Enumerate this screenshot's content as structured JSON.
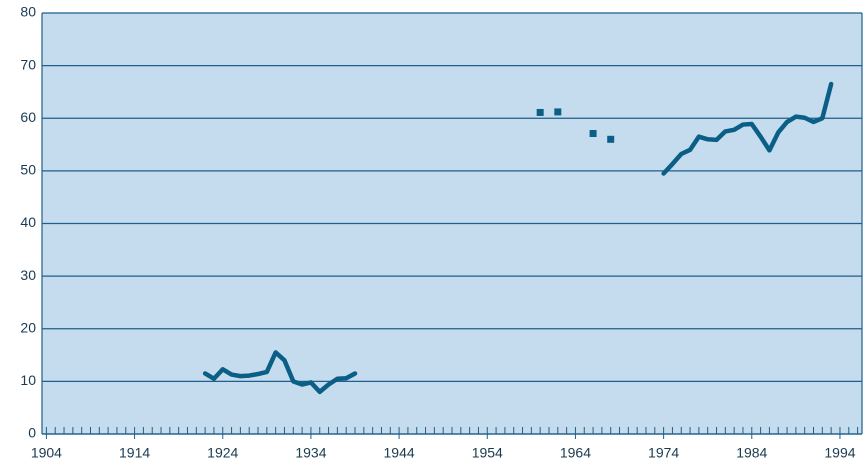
{
  "chart_data": {
    "type": "line",
    "xlim": [
      1903.5,
      1996.5
    ],
    "xticks": [
      1904,
      1914,
      1924,
      1934,
      1944,
      1954,
      1964,
      1974,
      1984,
      1994
    ],
    "xminor_ticks": [
      1904,
      1905,
      1906,
      1907,
      1908,
      1909,
      1910,
      1911,
      1912,
      1913,
      1914,
      1915,
      1916,
      1917,
      1918,
      1919,
      1920,
      1921,
      1922,
      1923,
      1924,
      1925,
      1926,
      1927,
      1928,
      1929,
      1930,
      1931,
      1932,
      1933,
      1934,
      1935,
      1936,
      1937,
      1938,
      1939,
      1940,
      1941,
      1942,
      1943,
      1944,
      1945,
      1946,
      1947,
      1948,
      1949,
      1950,
      1951,
      1952,
      1953,
      1954,
      1955,
      1956,
      1957,
      1958,
      1959,
      1960,
      1961,
      1962,
      1963,
      1964,
      1965,
      1966,
      1967,
      1968,
      1969,
      1970,
      1971,
      1972,
      1973,
      1974,
      1975,
      1976,
      1977,
      1978,
      1979,
      1980,
      1981,
      1982,
      1983,
      1984,
      1985,
      1986,
      1987,
      1988,
      1989,
      1990,
      1991,
      1992,
      1993,
      1994,
      1995,
      1996
    ],
    "ylim": [
      0,
      80
    ],
    "yticks": [
      0,
      10,
      20,
      30,
      40,
      50,
      60,
      70,
      80
    ],
    "grid": true,
    "series": [
      {
        "style": "line",
        "color": "#0b5f86",
        "x": [
          1922,
          1923,
          1924,
          1925,
          1926,
          1927,
          1928,
          1929,
          1930,
          1931,
          1932,
          1933,
          1934,
          1935,
          1936,
          1937,
          1938,
          1939
        ],
        "values": [
          11.5,
          10.5,
          12.3,
          11.3,
          11,
          11.1,
          11.4,
          11.8,
          15.5,
          14,
          10,
          9.4,
          9.8,
          8,
          9.4,
          10.5,
          10.6,
          11.5
        ]
      },
      {
        "style": "marker",
        "color": "#0b5f86",
        "x": [
          1960,
          1962,
          1966,
          1968
        ],
        "values": [
          61.1,
          61.2,
          57.1,
          56
        ]
      },
      {
        "style": "line",
        "color": "#0b5f86",
        "x": [
          1974,
          1975,
          1976,
          1977,
          1978,
          1979,
          1980,
          1981,
          1982,
          1983,
          1984,
          1985,
          1986,
          1987,
          1988,
          1989,
          1990,
          1991,
          1992,
          1993
        ],
        "values": [
          49.5,
          51.3,
          53.2,
          54,
          56.5,
          56,
          55.9,
          57.5,
          57.8,
          58.8,
          58.9,
          56.5,
          53.9,
          57.3,
          59.3,
          60.3,
          60.1,
          59.3,
          60,
          66.5
        ]
      }
    ]
  }
}
